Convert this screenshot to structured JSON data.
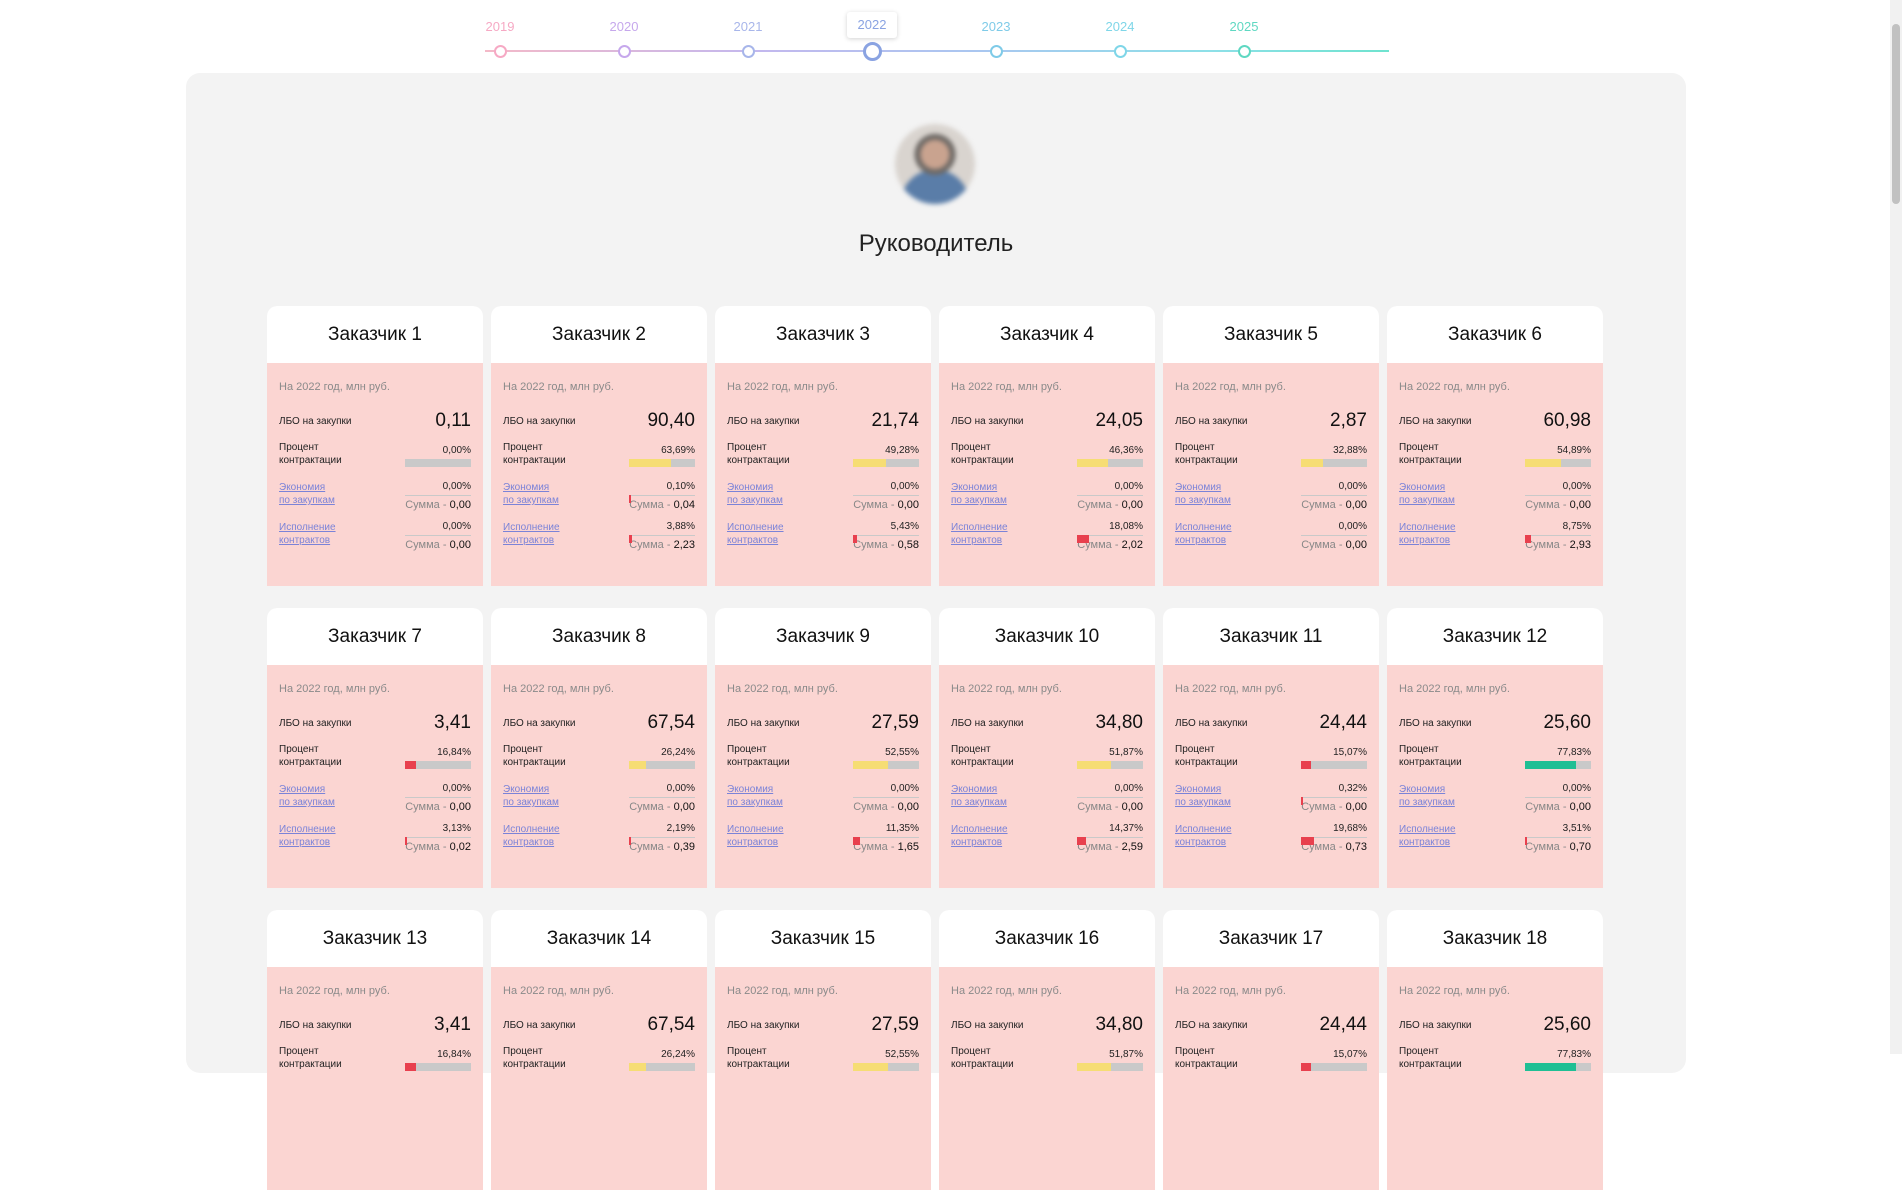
{
  "timeline": {
    "years": [
      {
        "label": "2019",
        "color": "#f6a9c4"
      },
      {
        "label": "2020",
        "color": "#c6a8ec"
      },
      {
        "label": "2021",
        "color": "#a8b6ea"
      },
      {
        "label": "2022",
        "color": "#8aa3e2",
        "active": true
      },
      {
        "label": "2023",
        "color": "#7fcbe8"
      },
      {
        "label": "2024",
        "color": "#7fd6e8"
      },
      {
        "label": "2025",
        "color": "#5fd8c2"
      }
    ]
  },
  "header": {
    "title": "Руководитель"
  },
  "labels": {
    "period": "На 2022 год, млн руб.",
    "lbo": "ЛБО на закупки",
    "contract_pct_1": "Процент",
    "contract_pct_2": "контрактации",
    "economy_1": "Экономия",
    "economy_2": "по закупкам",
    "execution_1": "Исполнение",
    "execution_2": "контрактов",
    "sum_prefix": "Сумма - "
  },
  "colors": {
    "card_body": "#fbd5d2",
    "bar_track": "#c9c9c9",
    "bar_red": "#e8404e",
    "bar_yellow": "#f6dd74",
    "bar_green": "#1fbf94",
    "link": "#7b83d8"
  },
  "customers": [
    {
      "name": "Заказчик 1",
      "lbo": "0,11",
      "contract_pct": "0,00%",
      "contract_val": 0.0,
      "economy_pct": "0,00%",
      "economy_val": 0.0,
      "economy_sum": "0,00",
      "exec_pct": "0,00%",
      "exec_val": 0.0,
      "exec_sum": "0,00"
    },
    {
      "name": "Заказчик 2",
      "lbo": "90,40",
      "contract_pct": "63,69%",
      "contract_val": 63.69,
      "economy_pct": "0,10%",
      "economy_val": 0.1,
      "economy_sum": "0,04",
      "exec_pct": "3,88%",
      "exec_val": 3.88,
      "exec_sum": "2,23"
    },
    {
      "name": "Заказчик 3",
      "lbo": "21,74",
      "contract_pct": "49,28%",
      "contract_val": 49.28,
      "economy_pct": "0,00%",
      "economy_val": 0.0,
      "economy_sum": "0,00",
      "exec_pct": "5,43%",
      "exec_val": 5.43,
      "exec_sum": "0,58"
    },
    {
      "name": "Заказчик 4",
      "lbo": "24,05",
      "contract_pct": "46,36%",
      "contract_val": 46.36,
      "economy_pct": "0,00%",
      "economy_val": 0.0,
      "economy_sum": "0,00",
      "exec_pct": "18,08%",
      "exec_val": 18.08,
      "exec_sum": "2,02"
    },
    {
      "name": "Заказчик 5",
      "lbo": "2,87",
      "contract_pct": "32,88%",
      "contract_val": 32.88,
      "economy_pct": "0,00%",
      "economy_val": 0.0,
      "economy_sum": "0,00",
      "exec_pct": "0,00%",
      "exec_val": 0.0,
      "exec_sum": "0,00"
    },
    {
      "name": "Заказчик 6",
      "lbo": "60,98",
      "contract_pct": "54,89%",
      "contract_val": 54.89,
      "economy_pct": "0,00%",
      "economy_val": 0.0,
      "economy_sum": "0,00",
      "exec_pct": "8,75%",
      "exec_val": 8.75,
      "exec_sum": "2,93"
    },
    {
      "name": "Заказчик 7",
      "lbo": "3,41",
      "contract_pct": "16,84%",
      "contract_val": 16.84,
      "economy_pct": "0,00%",
      "economy_val": 0.0,
      "economy_sum": "0,00",
      "exec_pct": "3,13%",
      "exec_val": 3.13,
      "exec_sum": "0,02"
    },
    {
      "name": "Заказчик 8",
      "lbo": "67,54",
      "contract_pct": "26,24%",
      "contract_val": 26.24,
      "economy_pct": "0,00%",
      "economy_val": 0.0,
      "economy_sum": "0,00",
      "exec_pct": "2,19%",
      "exec_val": 2.19,
      "exec_sum": "0,39"
    },
    {
      "name": "Заказчик 9",
      "lbo": "27,59",
      "contract_pct": "52,55%",
      "contract_val": 52.55,
      "economy_pct": "0,00%",
      "economy_val": 0.0,
      "economy_sum": "0,00",
      "exec_pct": "11,35%",
      "exec_val": 11.35,
      "exec_sum": "1,65"
    },
    {
      "name": "Заказчик 10",
      "lbo": "34,80",
      "contract_pct": "51,87%",
      "contract_val": 51.87,
      "economy_pct": "0,00%",
      "economy_val": 0.0,
      "economy_sum": "0,00",
      "exec_pct": "14,37%",
      "exec_val": 14.37,
      "exec_sum": "2,59"
    },
    {
      "name": "Заказчик 11",
      "lbo": "24,44",
      "contract_pct": "15,07%",
      "contract_val": 15.07,
      "economy_pct": "0,32%",
      "economy_val": 0.32,
      "economy_sum": "0,00",
      "exec_pct": "19,68%",
      "exec_val": 19.68,
      "exec_sum": "0,73"
    },
    {
      "name": "Заказчик 12",
      "lbo": "25,60",
      "contract_pct": "77,83%",
      "contract_val": 77.83,
      "economy_pct": "0,00%",
      "economy_val": 0.0,
      "economy_sum": "0,00",
      "exec_pct": "3,51%",
      "exec_val": 3.51,
      "exec_sum": "0,70"
    },
    {
      "name": "Заказчик 13",
      "lbo": "3,41",
      "contract_pct": "16,84%",
      "contract_val": 16.84
    },
    {
      "name": "Заказчик 14",
      "lbo": "67,54",
      "contract_pct": "26,24%",
      "contract_val": 26.24
    },
    {
      "name": "Заказчик 15",
      "lbo": "27,59",
      "contract_pct": "52,55%",
      "contract_val": 52.55
    },
    {
      "name": "Заказчик 16",
      "lbo": "34,80",
      "contract_pct": "51,87%",
      "contract_val": 51.87
    },
    {
      "name": "Заказчик 17",
      "lbo": "24,44",
      "contract_pct": "15,07%",
      "contract_val": 15.07
    },
    {
      "name": "Заказчик 18",
      "lbo": "25,60",
      "contract_pct": "77,83%",
      "contract_val": 77.83
    }
  ]
}
